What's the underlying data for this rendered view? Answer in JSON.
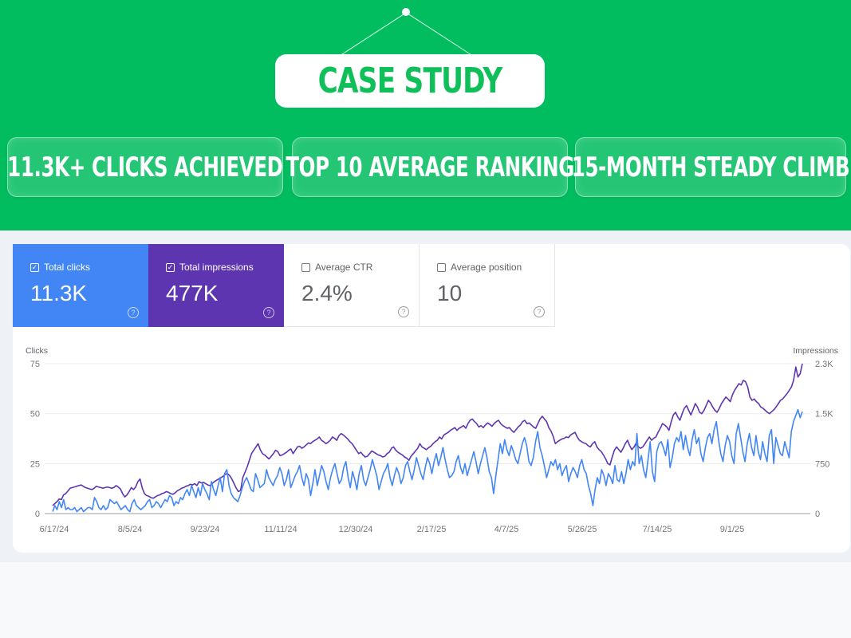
{
  "hero": {
    "title": "CASE STUDY",
    "highlights": [
      {
        "label": "11.3K+ CLICKS ACHIEVED"
      },
      {
        "label": "TOP 10 AVERAGE RANKING"
      },
      {
        "label": "15-MONTH STEADY CLIMB"
      }
    ],
    "background_color": "#01bd5f"
  },
  "metrics": [
    {
      "label": "Total clicks",
      "value": "11.3K",
      "checked": true,
      "color": "#4285f4",
      "help_icon": "help-circle-icon"
    },
    {
      "label": "Total impressions",
      "value": "477K",
      "checked": true,
      "color": "#5e35b1",
      "help_icon": "help-circle-icon"
    },
    {
      "label": "Average CTR",
      "value": "2.4%",
      "checked": false,
      "help_icon": "help-circle-icon"
    },
    {
      "label": "Average position",
      "value": "10",
      "checked": false,
      "help_icon": "help-circle-icon"
    }
  ],
  "icons": {
    "checked": "✓",
    "help": "?"
  },
  "chart_data": {
    "type": "line",
    "title": "",
    "ylabel": "Clicks",
    "y2label": "Impressions",
    "ylim": [
      0,
      75
    ],
    "y2lim": [
      0,
      2250
    ],
    "yticks": [
      "0",
      "25",
      "50",
      "75"
    ],
    "y2ticks": [
      "0",
      "750",
      "1.5K",
      "2.3K"
    ],
    "xticks": [
      "6/17/24",
      "8/5/24",
      "9/23/24",
      "11/11/24",
      "12/30/24",
      "2/17/25",
      "4/7/25",
      "5/26/25",
      "7/14/25",
      "9/1/25"
    ],
    "grid": true,
    "legend": "none",
    "series": [
      {
        "name": "Clicks",
        "axis": "left",
        "color": "#4285f4",
        "values": [
          1,
          4,
          2,
          6,
          3,
          7,
          2,
          3,
          2,
          2,
          3,
          1,
          2,
          3,
          1,
          2,
          3,
          3,
          2,
          8,
          6,
          3,
          2,
          4,
          2,
          3,
          7,
          6,
          5,
          6,
          4,
          2,
          3,
          4,
          2,
          1,
          5,
          7,
          4,
          3,
          2,
          3,
          4,
          6,
          7,
          3,
          4,
          6,
          5,
          3,
          5,
          7,
          6,
          9,
          8,
          4,
          6,
          5,
          8,
          7,
          10,
          12,
          9,
          14,
          11,
          8,
          13,
          9,
          15,
          12,
          10,
          7,
          16,
          12,
          9,
          14,
          18,
          11,
          20,
          22,
          14,
          10,
          8,
          7,
          6,
          9,
          13,
          16,
          18,
          15,
          12,
          11,
          20,
          17,
          13,
          14,
          15,
          22,
          18,
          16,
          14,
          17,
          19,
          23,
          20,
          14,
          17,
          22,
          13,
          16,
          19,
          21,
          24,
          18,
          14,
          20,
          17,
          9,
          15,
          22,
          14,
          19,
          24,
          21,
          16,
          12,
          18,
          22,
          25,
          20,
          15,
          17,
          23,
          26,
          18,
          13,
          21,
          17,
          12,
          20,
          24,
          17,
          14,
          18,
          22,
          27,
          23,
          19,
          12,
          16,
          20,
          22,
          25,
          18,
          14,
          19,
          23,
          20,
          15,
          18,
          24,
          26,
          21,
          17,
          22,
          28,
          24,
          20,
          17,
          23,
          28,
          25,
          20,
          26,
          30,
          24,
          28,
          33,
          27,
          22,
          18,
          19,
          21,
          26,
          29,
          23,
          20,
          25,
          19,
          23,
          27,
          31,
          26,
          20,
          25,
          29,
          33,
          28,
          21,
          18,
          10,
          19,
          27,
          35,
          30,
          37,
          32,
          29,
          34,
          31,
          27,
          25,
          30,
          35,
          38,
          34,
          26,
          24,
          28,
          36,
          41,
          33,
          29,
          24,
          18,
          22,
          26,
          24,
          27,
          22,
          25,
          19,
          22,
          24,
          16,
          20,
          23,
          21,
          18,
          24,
          27,
          22,
          20,
          14,
          10,
          4,
          12,
          18,
          15,
          22,
          19,
          14,
          20,
          18,
          15,
          24,
          17,
          16,
          21,
          15,
          20,
          27,
          22,
          26,
          24,
          40,
          25,
          29,
          22,
          18,
          27,
          36,
          21,
          16,
          31,
          35,
          36,
          33,
          29,
          37,
          23,
          28,
          35,
          38,
          36,
          41,
          32,
          39,
          33,
          29,
          37,
          42,
          35,
          38,
          30,
          26,
          33,
          38,
          40,
          35,
          42,
          46,
          37,
          30,
          26,
          34,
          39,
          36,
          29,
          25,
          40,
          45,
          38,
          31,
          26,
          35,
          40,
          33,
          29,
          39,
          31,
          27,
          36,
          30,
          26,
          39,
          42,
          25,
          38,
          34,
          30,
          29,
          36,
          32,
          28,
          41,
          46,
          49,
          52,
          48,
          51
        ]
      },
      {
        "name": "Impressions",
        "axis": "right",
        "color": "#5e35b1",
        "values": [
          120,
          150,
          180,
          220,
          210,
          280,
          300,
          340,
          380,
          390,
          400,
          410,
          420,
          430,
          410,
          390,
          380,
          370,
          360,
          380,
          410,
          400,
          390,
          380,
          390,
          400,
          390,
          380,
          390,
          420,
          400,
          370,
          300,
          250,
          280,
          330,
          390,
          360,
          400,
          480,
          520,
          380,
          300,
          270,
          260,
          240,
          230,
          250,
          270,
          280,
          300,
          310,
          330,
          320,
          300,
          290,
          310,
          340,
          360,
          380,
          390,
          410,
          420,
          440,
          430,
          450,
          420,
          480,
          460,
          470,
          450,
          430,
          420,
          450,
          480,
          500,
          520,
          540,
          560,
          590,
          600,
          570,
          520,
          450,
          380,
          330,
          350,
          540,
          620,
          700,
          800,
          900,
          950,
          1000,
          1050,
          960,
          900,
          880,
          850,
          820,
          860,
          900,
          950,
          930,
          870,
          880,
          900,
          920,
          950,
          970,
          900,
          950,
          1000,
          1010,
          980,
          1000,
          1030,
          1060,
          1050,
          1080,
          1100,
          1120,
          1150,
          1100,
          1080,
          1050,
          1070,
          1100,
          1150,
          1130,
          1100,
          1170,
          1200,
          1180,
          1150,
          1120,
          1080,
          1050,
          1000,
          950,
          900,
          920,
          880,
          850,
          860,
          900,
          940,
          920,
          900,
          880,
          870,
          850,
          860,
          900,
          920,
          980,
          1000,
          950,
          920,
          900,
          880,
          850,
          830,
          800,
          860,
          900,
          940,
          980,
          1050,
          1000,
          980,
          960,
          990,
          1010,
          1050,
          1080,
          1100,
          1150,
          1120,
          1180,
          1200,
          1220,
          1250,
          1270,
          1290,
          1250,
          1280,
          1300,
          1320,
          1280,
          1350,
          1400,
          1420,
          1380,
          1350,
          1300,
          1320,
          1290,
          1330,
          1360,
          1340,
          1310,
          1350,
          1380,
          1400,
          1350,
          1320,
          1300,
          1280,
          1290,
          1250,
          1220,
          1260,
          1300,
          1330,
          1380,
          1400,
          1350,
          1360,
          1330,
          1300,
          1280,
          1350,
          1420,
          1460,
          1420,
          1380,
          1290,
          1240,
          1160,
          1050,
          1080,
          1100,
          1120,
          1130,
          1150,
          1140,
          1180,
          1200,
          1220,
          1150,
          1100,
          1080,
          1060,
          1050,
          1020,
          1000,
          1050,
          1080,
          1000,
          960,
          930,
          880,
          820,
          750,
          730,
          850,
          950,
          1000,
          960,
          920,
          980,
          1050,
          1100,
          1020,
          960,
          1000,
          1060,
          1000,
          980,
          1000,
          1050,
          1100,
          1150,
          1100,
          1130,
          1150,
          1220,
          1280,
          1350,
          1330,
          1300,
          1250,
          1380,
          1480,
          1520,
          1450,
          1400,
          1500,
          1580,
          1620,
          1550,
          1480,
          1560,
          1650,
          1600,
          1520,
          1500,
          1550,
          1620,
          1700,
          1660,
          1600,
          1550,
          1520,
          1580,
          1650,
          1700,
          1750,
          1720,
          1680,
          1780,
          1850,
          1900,
          1950,
          1930,
          2000,
          1980,
          1900,
          1750,
          1700,
          1720,
          1680,
          1650,
          1600,
          1580,
          1550,
          1520,
          1500,
          1530,
          1560,
          1600,
          1650,
          1700,
          1720,
          1760,
          1800,
          1850,
          1900,
          2000,
          2200,
          2050,
          2100,
          2260
        ]
      }
    ]
  }
}
